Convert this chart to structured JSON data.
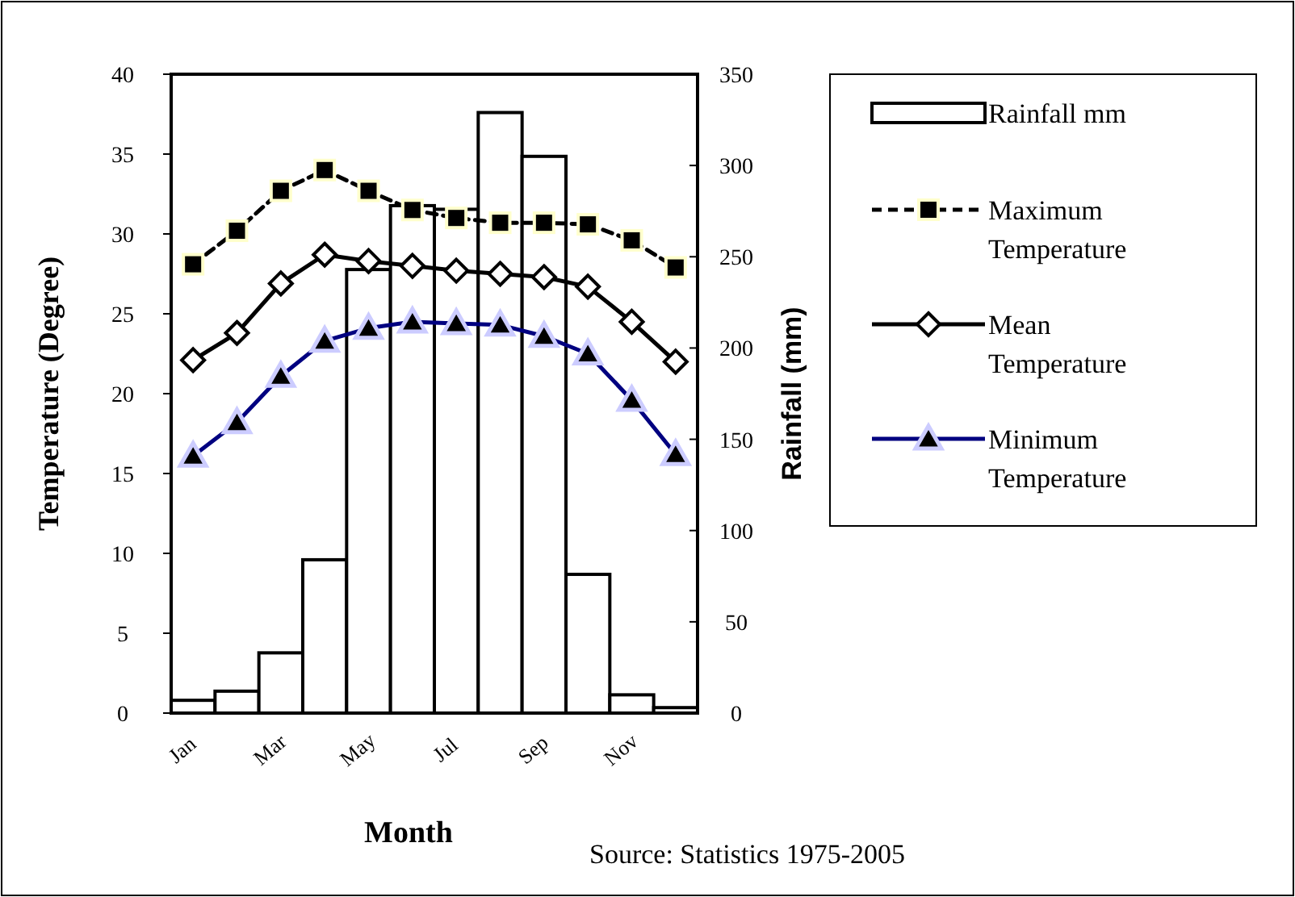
{
  "chart_data": {
    "type": "line",
    "xlabel": "Month",
    "ylabel": "Temperature (Degree)",
    "y2label": "Rainfall (mm)",
    "categories": [
      "Jan",
      null,
      "Mar",
      null,
      "May",
      null,
      "Jul",
      null,
      "Sep",
      null,
      "Nov",
      null
    ],
    "series": [
      {
        "name": "Rainfall mm",
        "type": "bar",
        "axis": "y2",
        "color": "#ffffff",
        "values": [
          7,
          12,
          33,
          84,
          243,
          278,
          276,
          329,
          305,
          76,
          10,
          3
        ]
      },
      {
        "name": "Maximum Temperature",
        "color": "#000000",
        "marker": "square",
        "line_style": "dashed",
        "values": [
          28.1,
          30.2,
          32.7,
          34.0,
          32.7,
          31.5,
          31.0,
          30.7,
          30.7,
          30.6,
          29.6,
          27.9
        ]
      },
      {
        "name": "Mean Temperature",
        "color": "#000000",
        "marker": "diamond",
        "line_style": "solid",
        "values": [
          22.1,
          23.8,
          26.9,
          28.7,
          28.3,
          28.0,
          27.7,
          27.5,
          27.3,
          26.7,
          24.5,
          22.0
        ]
      },
      {
        "name": "Minimum Temperature",
        "color": "#000080",
        "marker": "triangle",
        "line_style": "solid",
        "values": [
          16.1,
          18.2,
          21.1,
          23.3,
          24.1,
          24.5,
          24.4,
          24.3,
          23.6,
          22.5,
          19.6,
          16.2
        ]
      }
    ],
    "ylim": [
      0,
      40
    ],
    "yticks": [
      0,
      5,
      10,
      15,
      20,
      25,
      30,
      35,
      40
    ],
    "y2lim": [
      0,
      350
    ],
    "y2ticks": [
      0,
      50,
      100,
      150,
      200,
      250,
      300,
      350
    ],
    "legend": "right",
    "grid": false,
    "annotations": [
      "Source: Statistics 1975-2005"
    ]
  }
}
